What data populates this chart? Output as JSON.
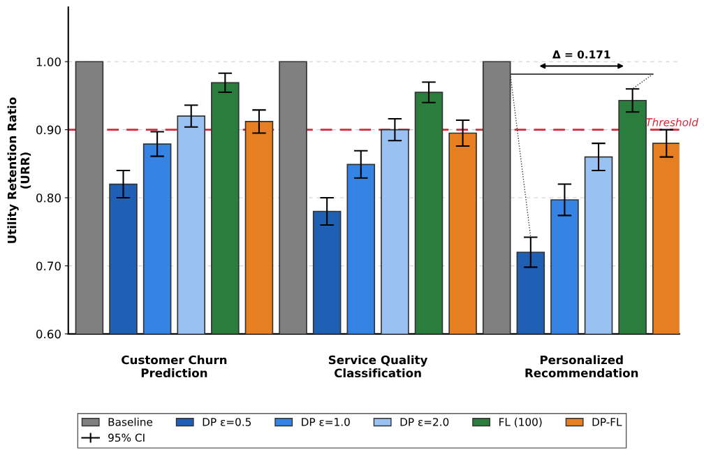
{
  "chart_data": {
    "type": "bar",
    "ylabel": "Utility Retention Ratio\n(URR)",
    "categories": [
      "Customer Churn\nPrediction",
      "Service Quality\nClassification",
      "Personalized\nRecommendation"
    ],
    "series": [
      {
        "name": "Baseline",
        "color": "#808080",
        "values": [
          1.0,
          1.0,
          1.0
        ]
      },
      {
        "name": "DP ε=0.5",
        "color": "#1f5fb4",
        "values": [
          0.82,
          0.78,
          0.72
        ],
        "errors": [
          0.02,
          0.02,
          0.022
        ]
      },
      {
        "name": "DP ε=1.0",
        "color": "#3584e4",
        "values": [
          0.879,
          0.849,
          0.797
        ],
        "errors": [
          0.018,
          0.02,
          0.023
        ]
      },
      {
        "name": "DP ε=2.0",
        "color": "#99c1f1",
        "values": [
          0.92,
          0.9,
          0.86
        ],
        "errors": [
          0.016,
          0.016,
          0.02
        ]
      },
      {
        "name": "FL (100)",
        "color": "#2a7d3c",
        "values": [
          0.969,
          0.955,
          0.943
        ],
        "errors": [
          0.014,
          0.015,
          0.017
        ]
      },
      {
        "name": "DP-FL",
        "color": "#e67e22",
        "values": [
          0.912,
          0.895,
          0.88
        ],
        "errors": [
          0.017,
          0.019,
          0.02
        ]
      }
    ],
    "ylim": [
      0.6,
      1.08
    ],
    "yticks": [
      {
        "value": 0.6,
        "label": "0.60"
      },
      {
        "value": 0.7,
        "label": "0.70"
      },
      {
        "value": 0.8,
        "label": "0.80"
      },
      {
        "value": 0.9,
        "label": "0.90"
      },
      {
        "value": 1.0,
        "label": "1.00"
      }
    ],
    "grid": "y",
    "legend": "bottom",
    "ref_lines": [
      {
        "axis": "y",
        "value": 0.9,
        "label": "Threshold",
        "color": "#d62839",
        "line_style": "dashed"
      }
    ],
    "annotations": [
      "Δ = 0.171",
      "95% CI"
    ]
  }
}
